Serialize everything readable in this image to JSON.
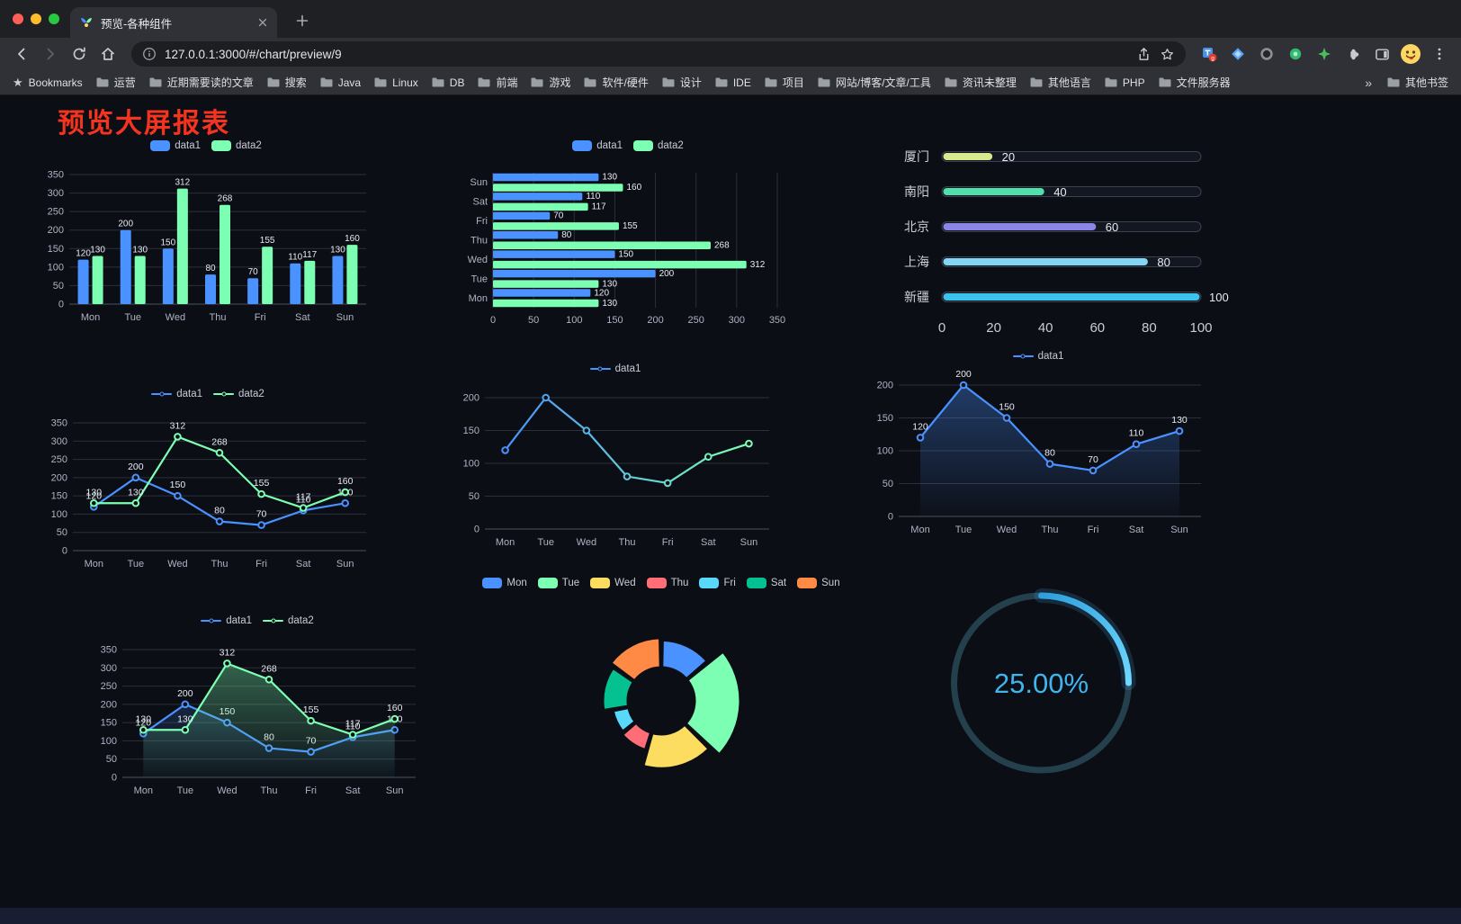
{
  "browser": {
    "tab": {
      "title": "预览-各种组件"
    },
    "address": {
      "url": "127.0.0.1:3000/#/chart/preview/9"
    },
    "bookmarks_bar": {
      "first": "Bookmarks",
      "items": [
        "运营",
        "近期需要读的文章",
        "搜索",
        "Java",
        "Linux",
        "DB",
        "前端",
        "游戏",
        "软件/硬件",
        "设计",
        "IDE",
        "项目",
        "网站/博客/文章/工具",
        "资讯未整理",
        "其他语言",
        "PHP",
        "文件服务器"
      ],
      "overflow": "»",
      "other": "其他书签"
    }
  },
  "page": {
    "title": "预览大屏报表",
    "title_color": "#f5341f"
  },
  "chart_data": [
    {
      "id": "grouped-bar",
      "type": "bar",
      "categories": [
        "Mon",
        "Tue",
        "Wed",
        "Thu",
        "Fri",
        "Sat",
        "Sun"
      ],
      "series": [
        {
          "name": "data1",
          "color": "#4992ff",
          "values": [
            120,
            200,
            150,
            80,
            70,
            110,
            130
          ]
        },
        {
          "name": "data2",
          "color": "#7cffb2",
          "values": [
            130,
            130,
            312,
            268,
            155,
            117,
            160
          ]
        }
      ],
      "ylim": [
        0,
        350
      ],
      "ystep": 50,
      "value_labels": true,
      "legend_position": "top",
      "grid": true
    },
    {
      "id": "horizontal-bar",
      "type": "bar",
      "orientation": "horizontal",
      "categories": [
        "Mon",
        "Tue",
        "Wed",
        "Thu",
        "Fri",
        "Sat",
        "Sun"
      ],
      "categories_display_top_to_bottom": [
        "Sun",
        "Sat",
        "Fri",
        "Thu",
        "Wed",
        "Tue",
        "Mon"
      ],
      "series": [
        {
          "name": "data1",
          "color": "#4992ff",
          "values": [
            120,
            200,
            150,
            80,
            70,
            110,
            130
          ]
        },
        {
          "name": "data2",
          "color": "#7cffb2",
          "values": [
            130,
            130,
            312,
            268,
            155,
            117,
            160
          ]
        }
      ],
      "xlim": [
        0,
        350
      ],
      "xstep": 50,
      "value_labels": true,
      "legend_position": "top",
      "grid": true
    },
    {
      "id": "city-progress",
      "type": "bar",
      "variant": "progress",
      "categories": [
        "厦门",
        "南阳",
        "北京",
        "上海",
        "新疆"
      ],
      "values": [
        20,
        40,
        60,
        80,
        100
      ],
      "bar_colors": [
        "#d9e98e",
        "#4fe0ad",
        "#8b85e8",
        "#83d6f3",
        "#3cc3ec"
      ],
      "xlim": [
        0,
        100
      ],
      "xticks": [
        0,
        20,
        40,
        60,
        80,
        100
      ]
    },
    {
      "id": "two-series-line",
      "type": "line",
      "categories": [
        "Mon",
        "Tue",
        "Wed",
        "Thu",
        "Fri",
        "Sat",
        "Sun"
      ],
      "series": [
        {
          "name": "data1",
          "color": "#4992ff",
          "values": [
            120,
            200,
            150,
            80,
            70,
            110,
            130
          ]
        },
        {
          "name": "data2",
          "color": "#7cffb2",
          "values": [
            130,
            130,
            312,
            268,
            155,
            117,
            160
          ]
        }
      ],
      "ylim": [
        0,
        350
      ],
      "ystep": 50,
      "value_labels": true,
      "legend_position": "top",
      "grid": true
    },
    {
      "id": "gradient-line",
      "type": "line",
      "categories": [
        "Mon",
        "Tue",
        "Wed",
        "Thu",
        "Fri",
        "Sat",
        "Sun"
      ],
      "series": [
        {
          "name": "data1",
          "gradient": [
            "#4992ff",
            "#7cffb2"
          ],
          "values": [
            120,
            200,
            150,
            80,
            70,
            110,
            130
          ]
        }
      ],
      "ylim": [
        0,
        200
      ],
      "ystep": 50,
      "value_labels": false,
      "legend_position": "top",
      "grid": true
    },
    {
      "id": "area-line",
      "type": "area",
      "categories": [
        "Mon",
        "Tue",
        "Wed",
        "Thu",
        "Fri",
        "Sat",
        "Sun"
      ],
      "series": [
        {
          "name": "data1",
          "color": "#4992ff",
          "area": true,
          "area_opacity": 0.35,
          "values": [
            120,
            200,
            150,
            80,
            70,
            110,
            130
          ]
        }
      ],
      "ylim": [
        0,
        200
      ],
      "ystep": 50,
      "value_labels": true,
      "legend_position": "top",
      "grid": true
    },
    {
      "id": "two-series-area",
      "type": "area",
      "categories": [
        "Mon",
        "Tue",
        "Wed",
        "Thu",
        "Fri",
        "Sat",
        "Sun"
      ],
      "series": [
        {
          "name": "data1",
          "color": "#4992ff",
          "area": true,
          "area_opacity": 0.18,
          "values": [
            120,
            200,
            150,
            80,
            70,
            110,
            130
          ]
        },
        {
          "name": "data2",
          "color": "#7cffb2",
          "area": true,
          "area_opacity": 0.35,
          "values": [
            130,
            130,
            312,
            268,
            155,
            117,
            160
          ]
        }
      ],
      "ylim": [
        0,
        350
      ],
      "ystep": 50,
      "value_labels": true,
      "legend_position": "top",
      "grid": true
    },
    {
      "id": "rose-donut",
      "type": "pie",
      "rose": true,
      "donut": true,
      "categories": [
        "Mon",
        "Tue",
        "Wed",
        "Thu",
        "Fri",
        "Sat",
        "Sun"
      ],
      "values": [
        120,
        200,
        150,
        80,
        70,
        110,
        130
      ],
      "colors": [
        "#4992ff",
        "#7cffb2",
        "#fddd60",
        "#ff6e76",
        "#58d9f9",
        "#05c091",
        "#ff8a45"
      ],
      "legend_position": "top"
    },
    {
      "id": "percent-gauge",
      "type": "gauge",
      "value": 25,
      "max": 100,
      "label": "25.00%",
      "color": "#41b4ee"
    }
  ]
}
